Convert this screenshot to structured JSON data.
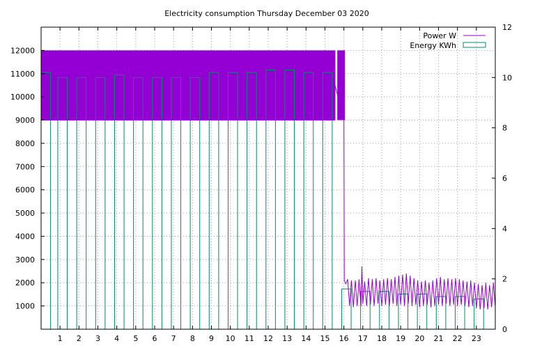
{
  "chart_data": {
    "type": "bar",
    "title": "Electricity consumption Thursday December 03 2020",
    "xlabel": "",
    "ylabel": "",
    "y2label": "",
    "x_ticks": [
      "1",
      "2",
      "3",
      "4",
      "5",
      "6",
      "7",
      "8",
      "9",
      "10",
      "11",
      "12",
      "13",
      "14",
      "15",
      "16",
      "17",
      "18",
      "19",
      "20",
      "21",
      "22",
      "23"
    ],
    "y_ticks": [
      1000,
      2000,
      3000,
      4000,
      5000,
      6000,
      7000,
      8000,
      9000,
      10000,
      11000,
      12000
    ],
    "y2_ticks": [
      0,
      2,
      4,
      6,
      8,
      10,
      12
    ],
    "xlim": [
      0,
      24
    ],
    "ylim": [
      0,
      13000
    ],
    "y2lim": [
      0,
      12
    ],
    "grid": true,
    "legend_position": "top-right",
    "series": [
      {
        "name": "Power W",
        "type": "line",
        "color": "#9400d3",
        "high_band": {
          "x_start": 0,
          "x_end": 16.05,
          "low": 9000,
          "high": 12000,
          "gap_x": [
            15.55,
            15.65
          ]
        },
        "points": [
          [
            0,
            9000
          ],
          [
            15.5,
            9000
          ],
          [
            15.5,
            10600
          ],
          [
            16.0,
            9000
          ],
          [
            16.02,
            2100
          ],
          [
            16.1,
            1950
          ],
          [
            16.2,
            2150
          ],
          [
            16.3,
            1000
          ],
          [
            16.4,
            2100
          ],
          [
            16.5,
            950
          ],
          [
            16.6,
            2100
          ],
          [
            16.7,
            1000
          ],
          [
            16.8,
            2150
          ],
          [
            16.9,
            1000
          ],
          [
            16.95,
            2700
          ],
          [
            17.0,
            1100
          ],
          [
            17.1,
            2050
          ],
          [
            17.2,
            1000
          ],
          [
            17.3,
            2200
          ],
          [
            17.4,
            1050
          ],
          [
            17.5,
            2150
          ],
          [
            17.6,
            1000
          ],
          [
            17.7,
            2200
          ],
          [
            17.8,
            1100
          ],
          [
            17.9,
            2100
          ],
          [
            18.0,
            1000
          ],
          [
            18.1,
            2150
          ],
          [
            18.2,
            1050
          ],
          [
            18.3,
            2200
          ],
          [
            18.4,
            1000
          ],
          [
            18.5,
            2150
          ],
          [
            18.6,
            1100
          ],
          [
            18.7,
            2250
          ],
          [
            18.8,
            1000
          ],
          [
            18.9,
            2300
          ],
          [
            19.0,
            1050
          ],
          [
            19.1,
            2350
          ],
          [
            19.2,
            1000
          ],
          [
            19.3,
            2400
          ],
          [
            19.4,
            1100
          ],
          [
            19.5,
            2300
          ],
          [
            19.6,
            1000
          ],
          [
            19.7,
            2200
          ],
          [
            19.8,
            1050
          ],
          [
            19.9,
            2100
          ],
          [
            20.0,
            950
          ],
          [
            20.1,
            2050
          ],
          [
            20.2,
            1000
          ],
          [
            20.3,
            2100
          ],
          [
            20.4,
            1050
          ],
          [
            20.5,
            2000
          ],
          [
            20.6,
            950
          ],
          [
            20.7,
            2100
          ],
          [
            20.8,
            1000
          ],
          [
            20.9,
            2200
          ],
          [
            21.0,
            1050
          ],
          [
            21.1,
            2250
          ],
          [
            21.2,
            1000
          ],
          [
            21.3,
            2150
          ],
          [
            21.4,
            1100
          ],
          [
            21.5,
            2200
          ],
          [
            21.6,
            1000
          ],
          [
            21.7,
            2150
          ],
          [
            21.8,
            1050
          ],
          [
            21.9,
            2200
          ],
          [
            22.0,
            1000
          ],
          [
            22.1,
            2150
          ],
          [
            22.2,
            1050
          ],
          [
            22.3,
            2100
          ],
          [
            22.4,
            1000
          ],
          [
            22.5,
            2050
          ],
          [
            22.6,
            950
          ],
          [
            22.7,
            2100
          ],
          [
            22.8,
            1000
          ],
          [
            22.9,
            2000
          ],
          [
            23.0,
            900
          ],
          [
            23.1,
            1950
          ],
          [
            23.2,
            850
          ],
          [
            23.3,
            1900
          ],
          [
            23.4,
            900
          ],
          [
            23.5,
            2000
          ],
          [
            23.6,
            850
          ],
          [
            23.7,
            1900
          ],
          [
            23.8,
            950
          ],
          [
            23.9,
            2000
          ],
          [
            24.0,
            950
          ]
        ]
      },
      {
        "name": "Energy KWh",
        "type": "bar",
        "color": "#008b6b",
        "x": [
          0,
          1,
          2,
          3,
          4,
          5,
          6,
          7,
          8,
          9,
          10,
          11,
          12,
          13,
          14,
          15,
          16,
          17,
          18,
          19,
          20,
          21,
          22,
          23
        ],
        "values": [
          10.2,
          10.0,
          10.0,
          10.0,
          10.1,
          10.0,
          10.0,
          10.0,
          10.0,
          10.2,
          10.2,
          10.2,
          10.3,
          10.3,
          10.2,
          10.2,
          1.6,
          1.5,
          1.5,
          1.4,
          1.4,
          1.3,
          1.3,
          1.2
        ]
      }
    ]
  }
}
